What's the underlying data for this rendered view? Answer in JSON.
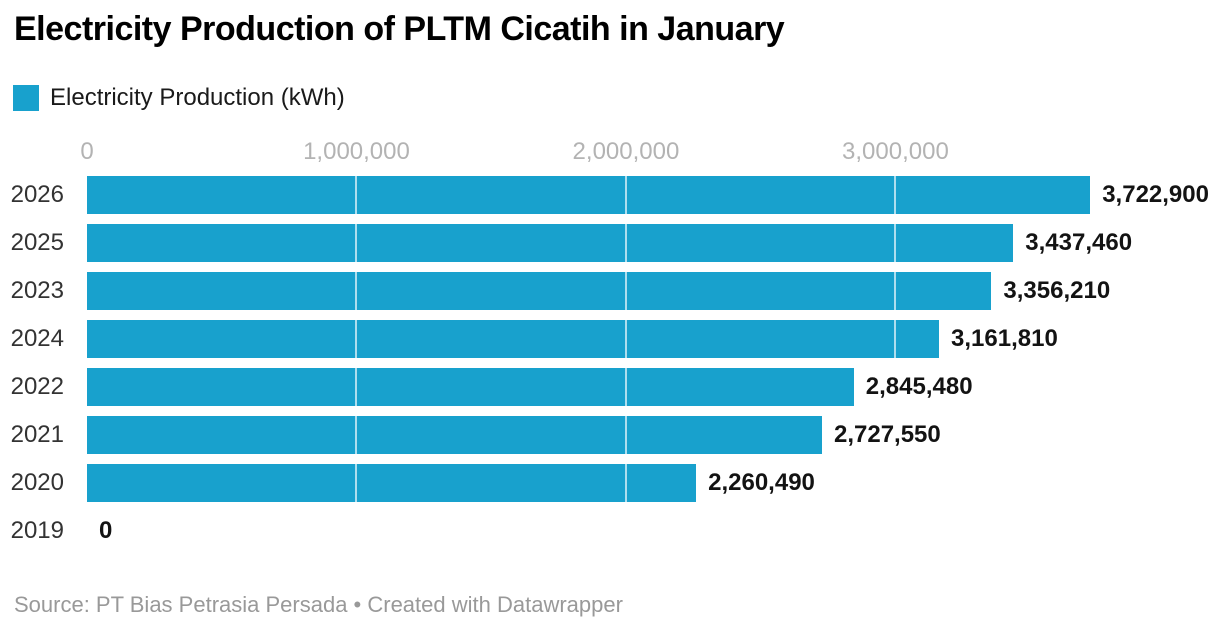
{
  "title": "Electricity Production of PLTM Cicatih in January",
  "legend": {
    "label": "Electricity Production (kWh)",
    "swatch_color": "#18a1cd"
  },
  "chart_data": {
    "type": "bar",
    "orientation": "horizontal",
    "title": "Electricity Production of PLTM Cicatih in January",
    "xlabel": "",
    "ylabel": "",
    "categories": [
      "2026",
      "2025",
      "2023",
      "2024",
      "2022",
      "2021",
      "2020",
      "2019"
    ],
    "values": [
      3722900,
      3437460,
      3356210,
      3161810,
      2845480,
      2727550,
      2260490,
      0
    ],
    "value_labels": [
      "3,722,900",
      "3,437,460",
      "3,356,210",
      "3,161,810",
      "2,845,480",
      "2,727,550",
      "2,260,490",
      "0"
    ],
    "series_name": "Electricity Production (kWh)",
    "xlim": [
      0,
      4160000
    ],
    "x_ticks": [
      {
        "value": 0,
        "label": "0"
      },
      {
        "value": 1000000,
        "label": "1,000,000"
      },
      {
        "value": 2000000,
        "label": "2,000,000"
      },
      {
        "value": 3000000,
        "label": "3,000,000"
      }
    ],
    "bar_color": "#18a1cd",
    "tick_label_color": "#b3b3b3",
    "grid": "vertical white gridlines drawn over bars",
    "legend_position": "top-left"
  },
  "footer": {
    "text": "Source: PT Bias Petrasia Persada • Created with Datawrapper"
  }
}
